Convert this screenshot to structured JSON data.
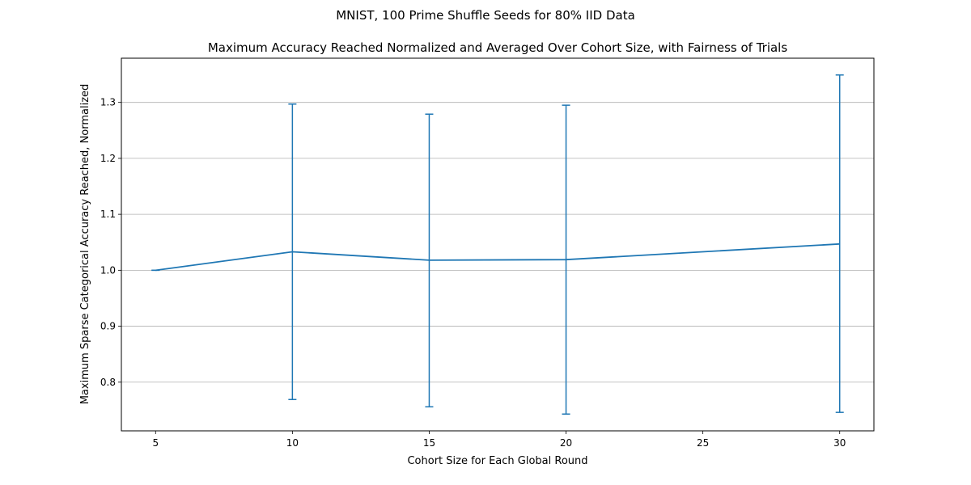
{
  "chart_data": {
    "type": "line",
    "suptitle": "MNIST, 100 Prime Shuffle Seeds for 80% IID Data",
    "title": "Maximum Accuracy Reached Normalized and Averaged Over Cohort Size, with Fairness of Trials",
    "xlabel": "Cohort Size for Each Global Round",
    "ylabel": "Maximum Sparse Categorical Accuracy Reached, Normalized",
    "x": [
      5,
      10,
      15,
      20,
      30
    ],
    "y": [
      1.0,
      1.033,
      1.018,
      1.019,
      1.047
    ],
    "yerr_low": [
      1.0,
      0.769,
      0.756,
      0.743,
      0.746
    ],
    "yerr_high": [
      1.0,
      1.297,
      1.279,
      1.295,
      1.349
    ],
    "xlim": [
      3.75,
      31.25
    ],
    "ylim": [
      0.713,
      1.379
    ],
    "xticks": [
      "5",
      "10",
      "15",
      "20",
      "25",
      "30"
    ],
    "xtick_values": [
      5,
      10,
      15,
      20,
      25,
      30
    ],
    "yticks": [
      "0.8",
      "0.9",
      "1.0",
      "1.1",
      "1.2",
      "1.3"
    ],
    "ytick_values": [
      0.8,
      0.9,
      1.0,
      1.1,
      1.2,
      1.3
    ],
    "grid": "y",
    "line_color": "#1f77b4",
    "grid_color": "#b0b0b0"
  }
}
